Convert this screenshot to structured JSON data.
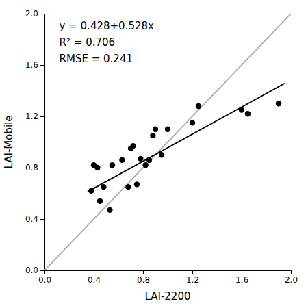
{
  "chart_data": {
    "type": "scatter",
    "xlabel": "LAI-2200",
    "ylabel": "LAI-Mobile",
    "xlim": [
      0.0,
      2.0
    ],
    "ylim": [
      0.0,
      2.0
    ],
    "xticks": [
      {
        "value": 0.0,
        "label": "0.0"
      },
      0.4,
      0.8,
      1.2,
      1.6,
      {
        "value": 2.0,
        "label": "2.0"
      }
    ],
    "yticks": [
      {
        "value": 0.0,
        "label": "0.0"
      },
      0.4,
      0.8,
      1.2,
      1.6,
      {
        "value": 2.0,
        "label": "2.0"
      }
    ],
    "grid": false,
    "annotations": [
      "y = 0.428+0.528x",
      "R² = 0.706",
      "RMSE = 0.241"
    ],
    "series": [
      {
        "type": "line",
        "color": "#aaaaaa",
        "x": [
          0.0,
          2.0
        ],
        "values": [
          0.0,
          2.0
        ]
      },
      {
        "type": "line",
        "color": "#000000",
        "x": [
          0.35,
          1.95
        ],
        "values": [
          0.6128,
          1.4576
        ]
      },
      {
        "type": "scatter",
        "color": "#000000",
        "marker": "circle",
        "x": [
          0.38,
          0.4,
          0.43,
          0.45,
          0.48,
          0.53,
          0.55,
          0.63,
          0.68,
          0.7,
          0.72,
          0.75,
          0.78,
          0.82,
          0.85,
          0.88,
          0.9,
          0.95,
          1.0,
          1.2,
          1.25,
          1.6,
          1.65,
          1.9
        ],
        "values": [
          0.62,
          0.82,
          0.8,
          0.54,
          0.65,
          0.47,
          0.82,
          0.86,
          0.65,
          0.95,
          0.97,
          0.67,
          0.87,
          0.82,
          0.86,
          1.05,
          1.1,
          0.9,
          1.1,
          1.15,
          1.28,
          1.25,
          1.22,
          1.3
        ]
      }
    ]
  }
}
